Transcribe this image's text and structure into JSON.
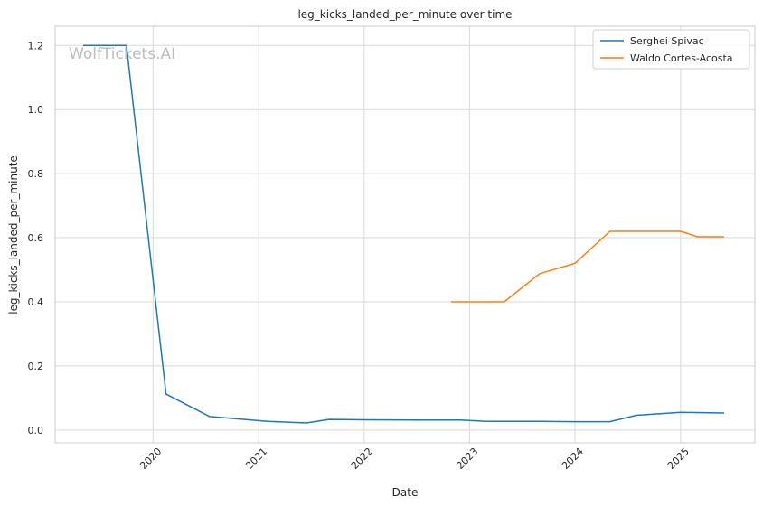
{
  "chart_data": {
    "type": "line",
    "title": "leg_kicks_landed_per_minute over time",
    "xlabel": "Date",
    "ylabel": "leg_kicks_landed_per_minute",
    "watermark": "WolfTickets.AI",
    "x_ticks": [
      "2020",
      "2021",
      "2022",
      "2023",
      "2024",
      "2025"
    ],
    "y_ticks": [
      "0.0",
      "0.2",
      "0.4",
      "0.6",
      "0.8",
      "1.0",
      "1.2"
    ],
    "xlim": [
      "2019-01-27",
      "2025-09-15"
    ],
    "ylim": [
      -0.04,
      1.26
    ],
    "grid": true,
    "legend_position": "top-right",
    "series": [
      {
        "name": "Serghei Spivac",
        "color": "#1f77b4",
        "points": [
          [
            "2019-05-04",
            1.2
          ],
          [
            "2019-10-01",
            1.2
          ],
          [
            "2020-02-15",
            0.112
          ],
          [
            "2020-07-15",
            0.042
          ],
          [
            "2021-02-01",
            0.027
          ],
          [
            "2021-06-15",
            0.022
          ],
          [
            "2021-09-01",
            0.033
          ],
          [
            "2022-01-01",
            0.032
          ],
          [
            "2022-07-01",
            0.031
          ],
          [
            "2022-12-01",
            0.031
          ],
          [
            "2023-03-01",
            0.027
          ],
          [
            "2023-09-01",
            0.027
          ],
          [
            "2024-01-01",
            0.026
          ],
          [
            "2024-05-01",
            0.026
          ],
          [
            "2024-08-01",
            0.046
          ],
          [
            "2025-01-01",
            0.055
          ],
          [
            "2025-06-01",
            0.053
          ]
        ]
      },
      {
        "name": "Waldo Cortes-Acosta",
        "color": "#ff7f0e",
        "points": [
          [
            "2022-10-29",
            0.4
          ],
          [
            "2023-05-01",
            0.4
          ],
          [
            "2023-09-01",
            0.488
          ],
          [
            "2024-01-01",
            0.52
          ],
          [
            "2024-05-01",
            0.62
          ],
          [
            "2025-01-01",
            0.62
          ],
          [
            "2025-03-01",
            0.603
          ],
          [
            "2025-06-01",
            0.603
          ]
        ]
      }
    ]
  }
}
